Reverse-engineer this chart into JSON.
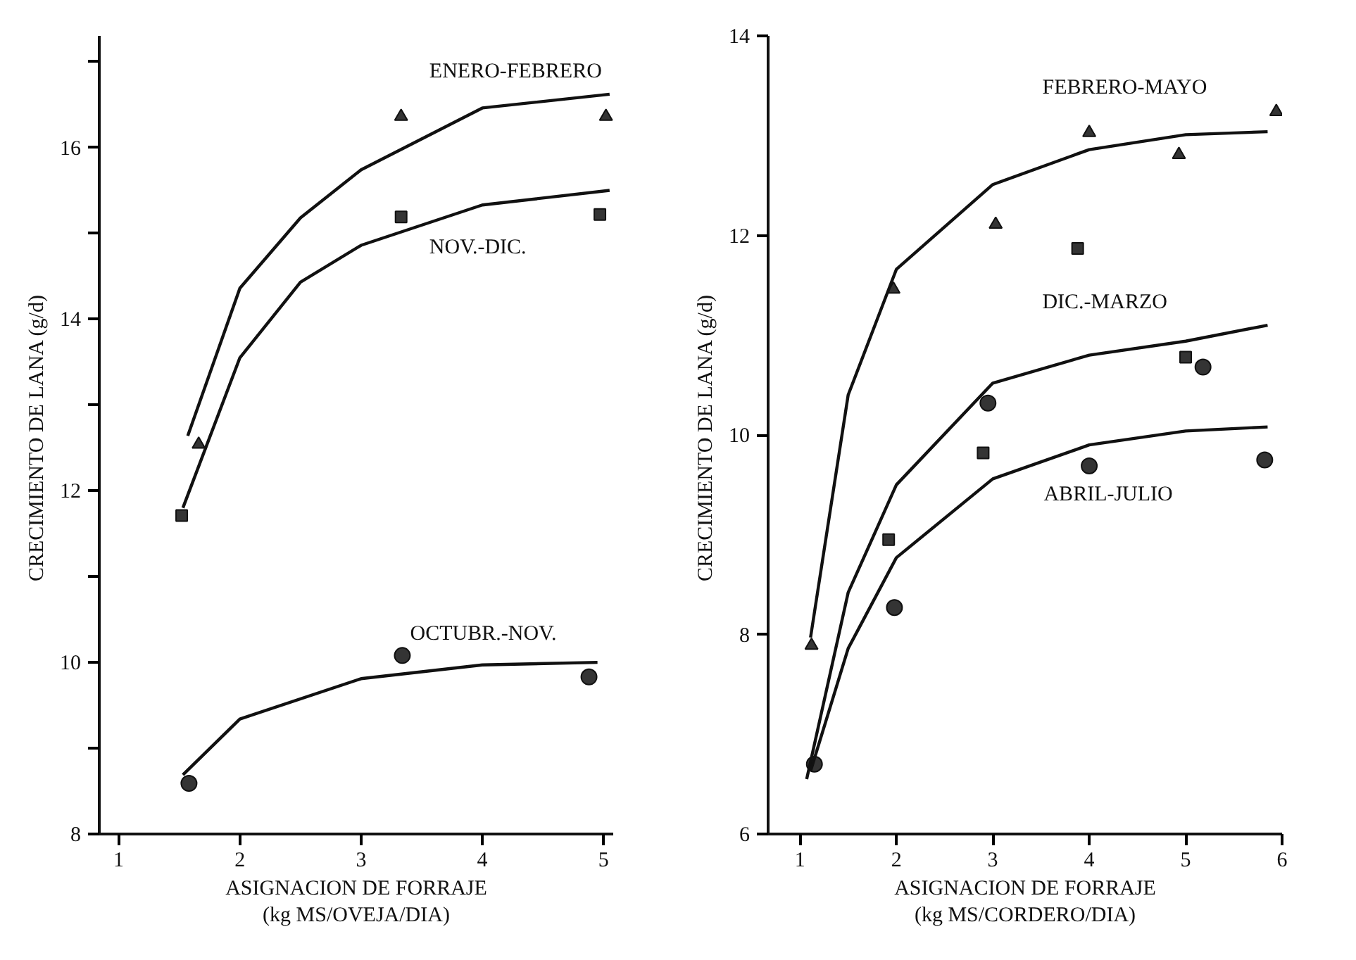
{
  "chart_data": [
    {
      "type": "scatter",
      "xlabel": "ASIGNACION DE FORRAJE\n(kg MS/OVEJA/DIA)",
      "ylabel": "CRECIMIENTO  DE LANA (g/d)",
      "xlim": [
        0.84,
        5.08
      ],
      "xticks": [
        1,
        2,
        3,
        4,
        5
      ],
      "ylim": [
        8,
        17.3
      ],
      "yticks": [
        8,
        {
          "value": 9,
          "label": null
        },
        10,
        {
          "value": 11,
          "label": null
        },
        12,
        {
          "value": 13,
          "label": null
        },
        14,
        {
          "value": 15,
          "label": null
        },
        16,
        {
          "value": 17,
          "label": null
        }
      ],
      "grid": false,
      "series": [
        {
          "marker": "triangle",
          "color": "#111111",
          "x": [
            1.66,
            3.33,
            5.02
          ],
          "values": [
            12.54,
            16.36,
            16.36
          ]
        },
        {
          "marker": "square",
          "color": "#111111",
          "x": [
            1.52,
            3.33,
            4.97
          ],
          "values": [
            11.71,
            15.19,
            15.22
          ]
        },
        {
          "marker": "circle",
          "color": "#111111",
          "x": [
            1.58,
            3.34,
            4.88
          ],
          "values": [
            8.59,
            10.08,
            9.83
          ]
        },
        {
          "type": "line",
          "name": "ENERO-FEBRERO",
          "color": "#111111",
          "x": [
            1.57,
            2,
            2.5,
            3,
            4,
            5.05
          ],
          "values": [
            12.64,
            14.36,
            15.18,
            15.74,
            16.46,
            16.62
          ]
        },
        {
          "type": "line",
          "name": "NOV.-DIC.",
          "color": "#111111",
          "x": [
            1.53,
            2,
            2.5,
            3,
            4,
            5.05
          ],
          "values": [
            11.8,
            13.55,
            14.43,
            14.86,
            15.33,
            15.5
          ]
        },
        {
          "type": "line",
          "name": "OCTUBR.-NOV.",
          "color": "#111111",
          "x": [
            1.53,
            2,
            3,
            4,
            4.95
          ],
          "values": [
            8.69,
            9.34,
            9.81,
            9.97,
            10.0
          ]
        }
      ]
    },
    {
      "type": "scatter",
      "xlabel": "ASIGNACION DE FORRAJE\n(kg MS/CORDERO/DIA)",
      "ylabel": "CRECIMIENTO  DE LANA (g/d)",
      "xlim": [
        0.67,
        6.0
      ],
      "xticks": [
        1,
        2,
        3,
        4,
        5,
        6
      ],
      "ylim": [
        6,
        14
      ],
      "yticks": [
        6,
        8,
        10,
        12,
        14
      ],
      "grid": false,
      "series": [
        {
          "marker": "triangle",
          "color": "#111111",
          "x": [
            1.12,
            1.97,
            3.03,
            4.0,
            4.93,
            5.94
          ],
          "values": [
            7.89,
            11.46,
            12.11,
            13.03,
            12.81,
            13.24
          ]
        },
        {
          "marker": "square",
          "color": "#111111",
          "x": [
            1.92,
            2.9,
            3.88,
            5.0
          ],
          "values": [
            8.95,
            9.82,
            11.87,
            10.78
          ]
        },
        {
          "marker": "circle",
          "color": "#111111",
          "x": [
            1.15,
            1.98,
            2.95,
            4.0,
            5.18,
            5.82
          ],
          "values": [
            6.7,
            8.27,
            10.32,
            9.69,
            10.68,
            9.75
          ]
        },
        {
          "type": "line",
          "name": "FEBRERO-MAYO",
          "color": "#111111",
          "x": [
            1.11,
            1.5,
            2,
            3,
            4,
            5,
            5.85
          ],
          "values": [
            7.97,
            10.4,
            11.66,
            12.51,
            12.86,
            13.01,
            13.04
          ]
        },
        {
          "type": "line",
          "name": "DIC.-MARZO",
          "color": "#111111",
          "x": [
            1.07,
            1.5,
            2,
            3,
            4,
            5,
            5.85
          ],
          "values": [
            6.55,
            8.42,
            9.5,
            10.52,
            10.8,
            10.94,
            11.1
          ]
        },
        {
          "type": "line",
          "name": "ABRIL-JULIO",
          "color": "#111111",
          "x": [
            1.11,
            1.5,
            2,
            3,
            4,
            5,
            5.85
          ],
          "values": [
            6.63,
            7.86,
            8.77,
            9.56,
            9.9,
            10.04,
            10.08
          ]
        }
      ]
    }
  ]
}
